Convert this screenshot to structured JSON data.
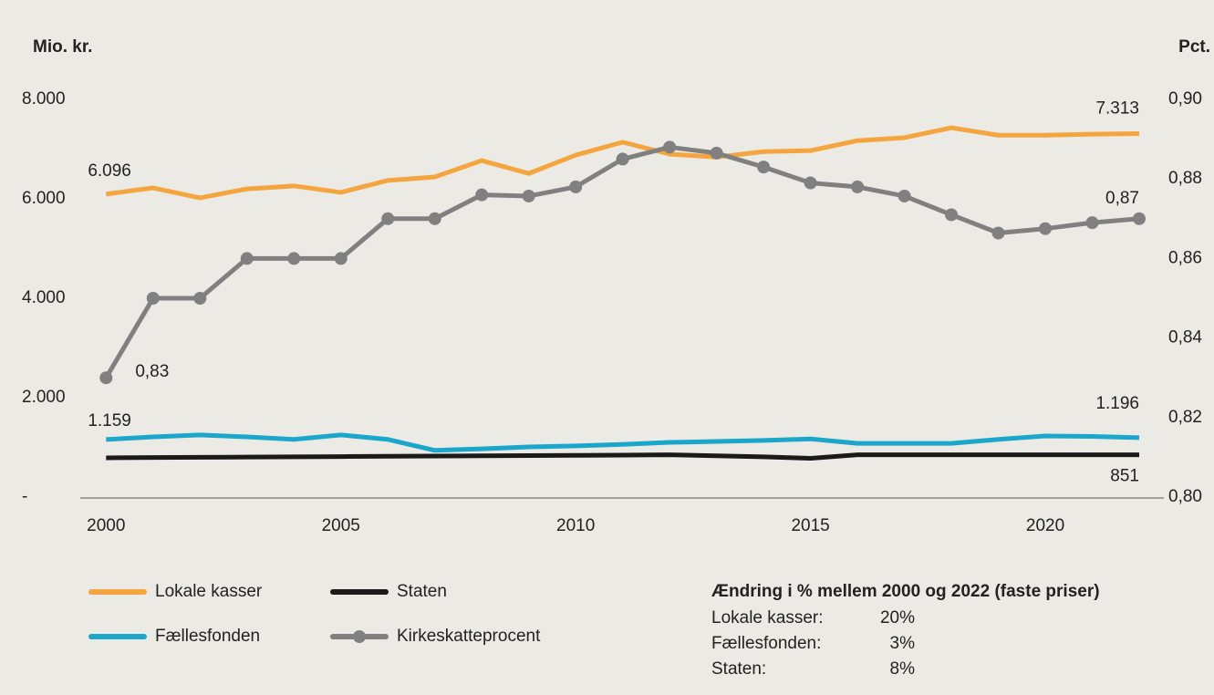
{
  "chart_data": {
    "type": "line",
    "y_label": "Mio. kr.",
    "y2_label": "Pct.",
    "x": [
      2000,
      2001,
      2002,
      2003,
      2004,
      2005,
      2006,
      2007,
      2008,
      2009,
      2010,
      2011,
      2012,
      2013,
      2014,
      2015,
      2016,
      2017,
      2018,
      2019,
      2020,
      2021,
      2022
    ],
    "xlim": [
      1999.45,
      2022.33
    ],
    "xticks": [
      2000,
      2005,
      2010,
      2015,
      2020
    ],
    "ylim": [
      0,
      8000
    ],
    "yticks": [
      {
        "value": 0,
        "label": "-"
      },
      {
        "value": 2000,
        "label": "2.000"
      },
      {
        "value": 4000,
        "label": "4.000"
      },
      {
        "value": 6000,
        "label": "6.000"
      },
      {
        "value": 8000,
        "label": "8.000"
      }
    ],
    "y2lim": [
      0.8,
      0.9
    ],
    "y2ticks": [
      {
        "value": 0.8,
        "label": "0,80"
      },
      {
        "value": 0.82,
        "label": "0,82"
      },
      {
        "value": 0.84,
        "label": "0,84"
      },
      {
        "value": 0.86,
        "label": "0,86"
      },
      {
        "value": 0.88,
        "label": "0,88"
      },
      {
        "value": 0.9,
        "label": "0,90"
      }
    ],
    "series": [
      {
        "name": "Lokale kasser",
        "color": "#f5a53f",
        "values": [
          6096,
          6220,
          6020,
          6200,
          6260,
          6130,
          6370,
          6440,
          6770,
          6510,
          6880,
          7140,
          6900,
          6840,
          6950,
          6970,
          7170,
          7230,
          7430,
          7280,
          7280,
          7300,
          7313
        ],
        "value_labels": [
          "6.096",
          null,
          null,
          null,
          null,
          null,
          null,
          null,
          null,
          null,
          null,
          null,
          null,
          null,
          null,
          null,
          null,
          null,
          null,
          null,
          null,
          null,
          "7.313"
        ]
      },
      {
        "name": "Staten",
        "color": "#1a1a1a",
        "values": [
          790,
          795,
          800,
          805,
          810,
          815,
          820,
          825,
          830,
          835,
          840,
          845,
          850,
          830,
          810,
          780,
          850,
          850,
          850,
          850,
          850,
          850,
          851
        ],
        "value_labels": [
          null,
          null,
          null,
          null,
          null,
          null,
          null,
          null,
          null,
          null,
          null,
          null,
          null,
          null,
          null,
          null,
          null,
          null,
          null,
          null,
          null,
          null,
          "851"
        ]
      },
      {
        "name": "Fællesfonden",
        "color": "#1ba6cb",
        "values": [
          1159,
          1210,
          1250,
          1210,
          1160,
          1250,
          1160,
          940,
          970,
          1010,
          1030,
          1060,
          1100,
          1120,
          1140,
          1170,
          1080,
          1080,
          1080,
          1160,
          1230,
          1220,
          1196
        ],
        "value_labels": [
          "1.159",
          null,
          null,
          null,
          null,
          null,
          null,
          null,
          null,
          null,
          null,
          null,
          null,
          null,
          null,
          null,
          null,
          null,
          null,
          null,
          null,
          null,
          "1.196"
        ]
      },
      {
        "name": "Kirkeskatteprocent",
        "color": "#808080",
        "axis": "y2",
        "markers": true,
        "values": [
          0.83,
          0.85,
          0.85,
          0.86,
          0.86,
          0.86,
          0.87,
          0.87,
          0.876,
          0.8757,
          0.878,
          0.885,
          0.888,
          0.8865,
          0.883,
          0.879,
          0.878,
          0.8757,
          0.871,
          0.8664,
          0.8675,
          0.869,
          0.87
        ],
        "value_labels": [
          "0,83",
          null,
          null,
          null,
          null,
          null,
          null,
          null,
          null,
          null,
          null,
          null,
          null,
          null,
          null,
          null,
          null,
          null,
          null,
          null,
          null,
          null,
          "0,87"
        ]
      }
    ],
    "change_table": {
      "title": "Ændring i % mellem 2000 og 2022 (faste priser)",
      "rows": [
        [
          "Lokale kasser:",
          "20%"
        ],
        [
          "Fællesfonden:",
          "3%"
        ],
        [
          "Staten:",
          "8%"
        ]
      ]
    }
  }
}
